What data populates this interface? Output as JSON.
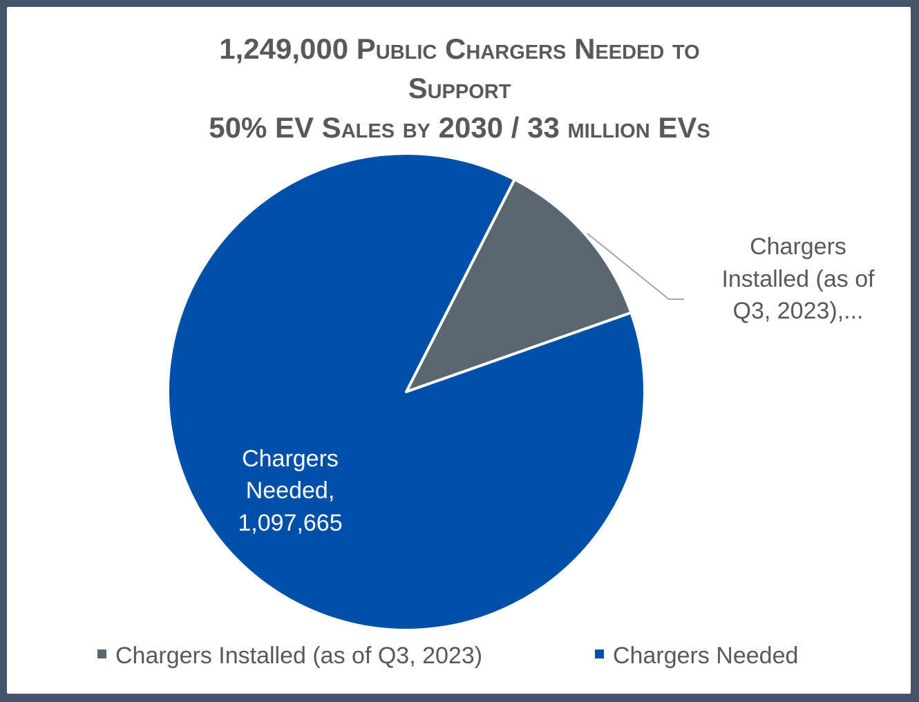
{
  "chart_data": {
    "type": "pie",
    "title_lines": [
      "1,249,000 Public Chargers Needed to",
      "Support",
      "50% EV Sales by 2030 / 33 million EVs"
    ],
    "slices": [
      {
        "name": "Chargers Installed (as of Q3, 2023)",
        "value": 151335,
        "color": "#5a6670",
        "label_lines": [
          "Chargers",
          "Installed (as of",
          "Q3, 2023),..."
        ]
      },
      {
        "name": "Chargers Needed",
        "value": 1097665,
        "color": "#004fa8",
        "label_lines": [
          "Chargers",
          "Needed,",
          "1,097,665"
        ]
      }
    ],
    "start_angle_deg": 27,
    "legend": {
      "position": "bottom",
      "entries": [
        "Chargers Installed (as of Q3, 2023)",
        "Chargers Needed"
      ]
    }
  },
  "colors": {
    "frame": "#44546a",
    "text": "#595959"
  }
}
